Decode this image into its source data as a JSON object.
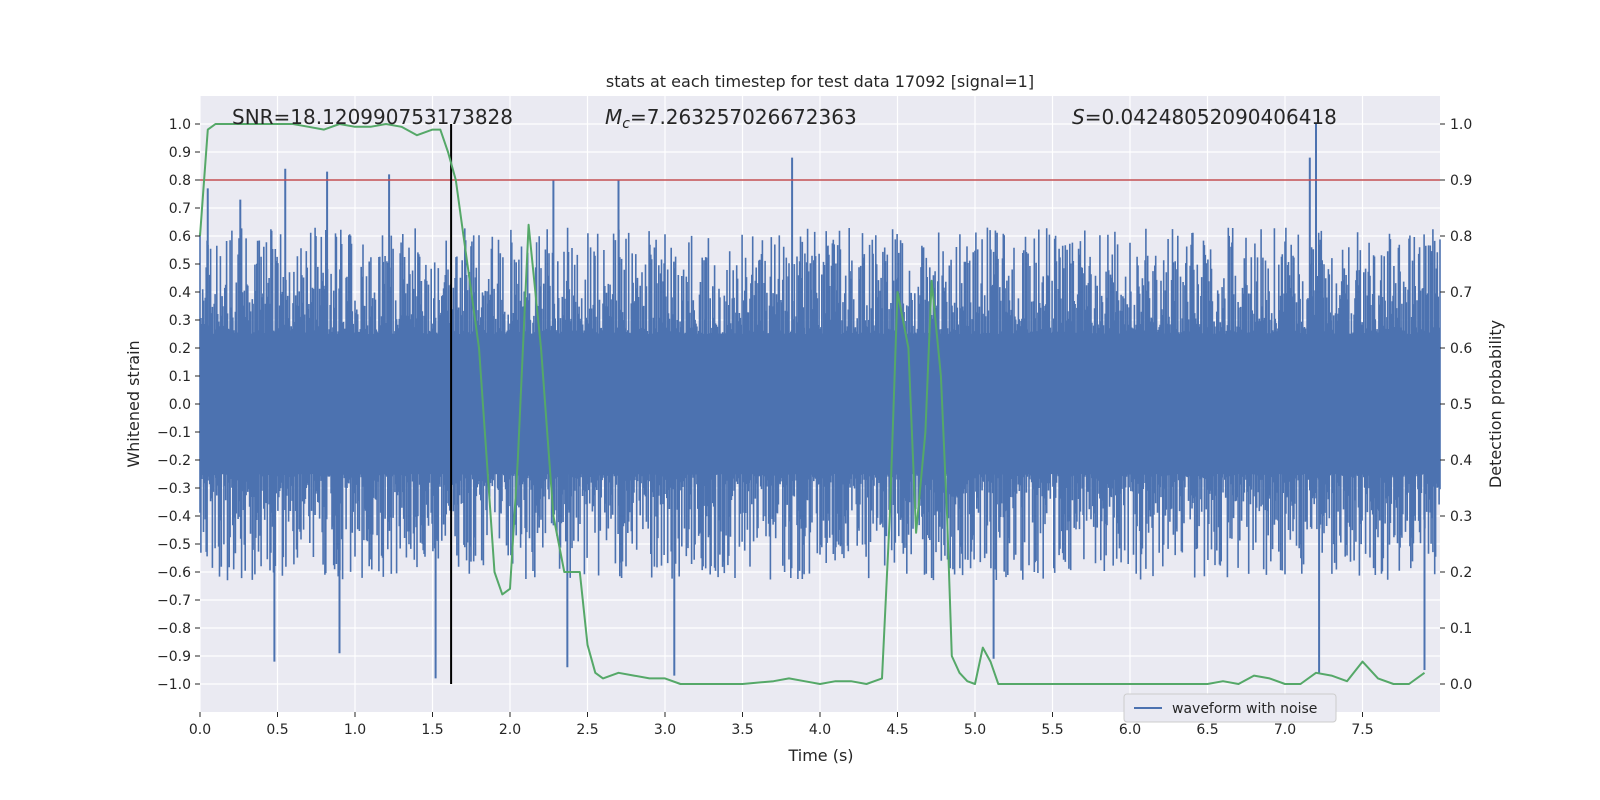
{
  "chart_data": {
    "type": "line",
    "title": "stats at each timestep for test data 17092 [signal=1]",
    "xlabel": "Time (s)",
    "ylabel_left": "Whitened strain",
    "ylabel_right": "Detection probability",
    "xlim": [
      0,
      8
    ],
    "ylim_left": [
      -1.1,
      1.1
    ],
    "ylim_right": [
      -0.05,
      1.05
    ],
    "x_ticks": [
      "0.0",
      "0.5",
      "1.0",
      "1.5",
      "2.0",
      "2.5",
      "3.0",
      "3.5",
      "4.0",
      "4.5",
      "5.0",
      "5.5",
      "6.0",
      "6.5",
      "7.0",
      "7.5"
    ],
    "x_tick_values": [
      0,
      0.5,
      1,
      1.5,
      2,
      2.5,
      3,
      3.5,
      4,
      4.5,
      5,
      5.5,
      6,
      6.5,
      7,
      7.5
    ],
    "y_left_ticks": [
      "1.0",
      "0.9",
      "0.8",
      "0.7",
      "0.6",
      "0.5",
      "0.4",
      "0.3",
      "0.2",
      "0.1",
      "0.0",
      "−0.1",
      "−0.2",
      "−0.3",
      "−0.4",
      "−0.5",
      "−0.6",
      "−0.7",
      "−0.8",
      "−0.9",
      "−1.0"
    ],
    "y_left_tick_values": [
      1,
      0.9,
      0.8,
      0.7,
      0.6,
      0.5,
      0.4,
      0.3,
      0.2,
      0.1,
      0,
      -0.1,
      -0.2,
      -0.3,
      -0.4,
      -0.5,
      -0.6,
      -0.7,
      -0.8,
      -0.9,
      -1
    ],
    "y_right_ticks": [
      "1.0",
      "0.9",
      "0.8",
      "0.7",
      "0.6",
      "0.5",
      "0.4",
      "0.3",
      "0.2",
      "0.1",
      "0.0"
    ],
    "y_right_tick_values": [
      1,
      0.9,
      0.8,
      0.7,
      0.6,
      0.5,
      0.4,
      0.3,
      0.2,
      0.1,
      0
    ],
    "annotations": {
      "snr": "SNR=18.120990753173828",
      "mc": "=7.263257026672363",
      "mc_symbol": "M",
      "mc_subscript": "c",
      "s": "=0.04248052090406418",
      "s_symbol": "S"
    },
    "threshold": {
      "value": 0.8,
      "axis": "left",
      "color": "#c44e52"
    },
    "marker_time": 1.62,
    "legend": {
      "label": "waveform with noise",
      "location": "lower-right"
    },
    "series": [
      {
        "name": "waveform with noise",
        "axis": "left",
        "color": "#4c72b0",
        "kind": "noise-strain",
        "x_range": [
          0,
          8
        ],
        "core_band": [
          -0.2,
          0.2
        ],
        "typical_range": [
          -0.45,
          0.45
        ],
        "peaks": [
          {
            "t": 0.05,
            "v": 0.77
          },
          {
            "t": 0.26,
            "v": 0.73
          },
          {
            "t": 0.55,
            "v": 0.84
          },
          {
            "t": 0.82,
            "v": 0.83
          },
          {
            "t": 1.22,
            "v": 0.82
          },
          {
            "t": 2.28,
            "v": 0.8
          },
          {
            "t": 2.7,
            "v": 0.8
          },
          {
            "t": 3.82,
            "v": 0.88
          },
          {
            "t": 7.2,
            "v": 1.0
          },
          {
            "t": 7.16,
            "v": 0.88
          },
          {
            "t": 0.48,
            "v": -0.92
          },
          {
            "t": 0.9,
            "v": -0.89
          },
          {
            "t": 1.52,
            "v": -0.98
          },
          {
            "t": 2.37,
            "v": -0.94
          },
          {
            "t": 3.06,
            "v": -0.97
          },
          {
            "t": 5.12,
            "v": -0.91
          },
          {
            "t": 7.22,
            "v": -0.96
          },
          {
            "t": 7.9,
            "v": -0.95
          }
        ]
      },
      {
        "name": "detection probability",
        "axis": "right",
        "color": "#55a868",
        "x": [
          0.0,
          0.05,
          0.1,
          0.2,
          0.3,
          0.4,
          0.5,
          0.6,
          0.7,
          0.8,
          0.9,
          1.0,
          1.1,
          1.2,
          1.3,
          1.4,
          1.5,
          1.55,
          1.6,
          1.65,
          1.7,
          1.75,
          1.8,
          1.85,
          1.9,
          1.95,
          2.0,
          2.05,
          2.12,
          2.2,
          2.28,
          2.35,
          2.45,
          2.5,
          2.55,
          2.6,
          2.7,
          2.8,
          2.9,
          3.0,
          3.1,
          3.3,
          3.5,
          3.7,
          3.8,
          3.9,
          4.0,
          4.1,
          4.2,
          4.3,
          4.35,
          4.4,
          4.45,
          4.5,
          4.57,
          4.62,
          4.68,
          4.72,
          4.78,
          4.82,
          4.85,
          4.9,
          4.95,
          5.0,
          5.05,
          5.1,
          5.15,
          5.2,
          5.3,
          5.5,
          6.0,
          6.5,
          6.6,
          6.7,
          6.8,
          6.9,
          7.0,
          7.1,
          7.2,
          7.3,
          7.4,
          7.5,
          7.6,
          7.7,
          7.8,
          7.9
        ],
        "y": [
          0.8,
          0.99,
          1.0,
          1.0,
          1.0,
          1.0,
          1.0,
          1.0,
          0.995,
          0.99,
          1.0,
          0.995,
          0.995,
          1.0,
          0.995,
          0.98,
          0.99,
          0.99,
          0.95,
          0.9,
          0.8,
          0.7,
          0.6,
          0.4,
          0.2,
          0.16,
          0.17,
          0.4,
          0.82,
          0.6,
          0.3,
          0.2,
          0.2,
          0.07,
          0.02,
          0.01,
          0.02,
          0.015,
          0.01,
          0.01,
          0.0,
          0.0,
          0.0,
          0.005,
          0.01,
          0.005,
          0.0,
          0.005,
          0.005,
          0.0,
          0.005,
          0.01,
          0.3,
          0.7,
          0.6,
          0.27,
          0.45,
          0.72,
          0.55,
          0.3,
          0.05,
          0.02,
          0.005,
          0.0,
          0.065,
          0.04,
          0.0,
          0.0,
          0.0,
          0.0,
          0.0,
          0.0,
          0.005,
          0.0,
          0.015,
          0.01,
          0.0,
          0.0,
          0.02,
          0.015,
          0.005,
          0.04,
          0.01,
          0.0,
          0.0,
          0.02
        ]
      }
    ]
  }
}
